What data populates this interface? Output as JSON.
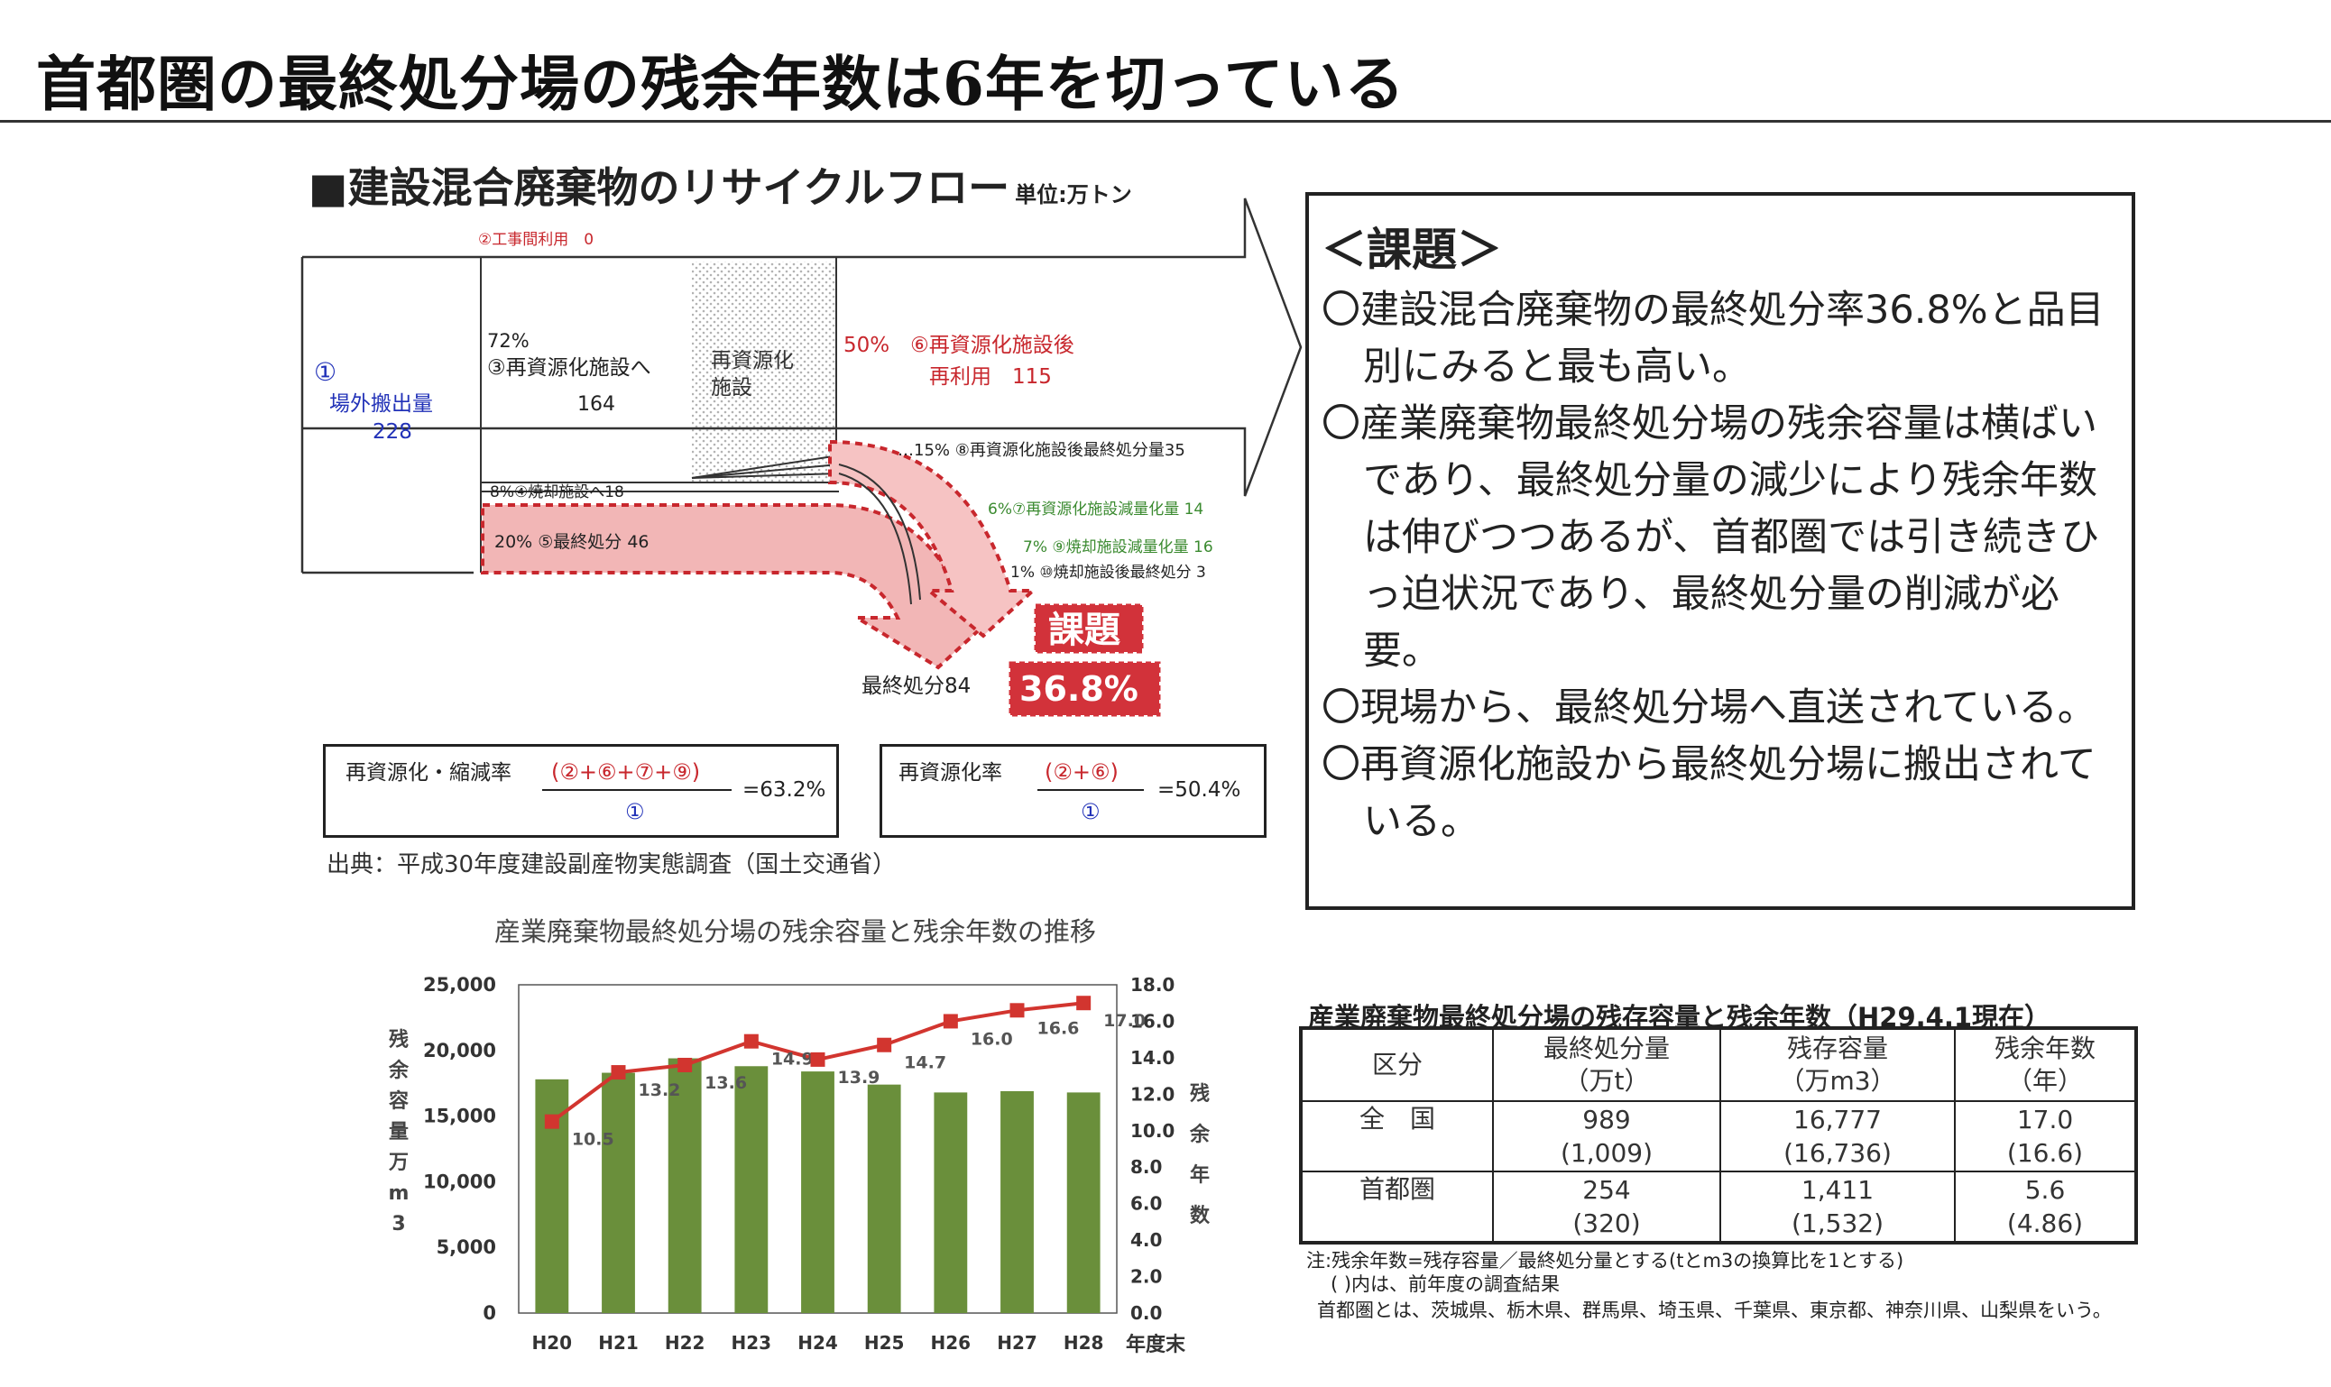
{
  "page": {
    "title": "首都圏の最終処分場の残余年数は6年を切っている"
  },
  "flow": {
    "heading": "■建設混合廃棄物のリサイクルフロー",
    "unit": "単位:万トン",
    "labels": {
      "koji": "②工事間利用　0",
      "gaibu_num": "①",
      "gaibu_1": "場外搬出量",
      "gaibu_2": "228",
      "to_fac_pct": "72%",
      "to_fac": "③再資源化施設へ",
      "to_fac_val": "164",
      "facility_1": "再資源化",
      "facility_2": "施設",
      "reuse_1": "50%　⑥再資源化施設後",
      "reuse_2": "再利用　115",
      "final_after_fac": "…15% ⑧再資源化施設後最終処分量35",
      "incin": "8%④焼却施設へ18",
      "reduction7": "6%⑦再資源化施設減量化量 14",
      "final5": "20% ⑤最終処分 46",
      "reduction9": "7% ⑨焼却施設減量化量 16",
      "final10": "1% ⑩焼却施設後最終処分 3",
      "final_total": "最終処分84",
      "kadai_stamp": "課題",
      "kadai_pct": "36.8%"
    },
    "formula1": {
      "label": "再資源化・縮減率",
      "numer": "(②+⑥+⑦+⑨)",
      "denom": "①",
      "result": "=63.2%"
    },
    "formula2": {
      "label": "再資源化率",
      "numer": "(②+⑥)",
      "denom": "①",
      "result": "=50.4%"
    },
    "source": "出典：平成30年度建設副産物実態調査（国土交通省）"
  },
  "kadai": {
    "title": "＜課題＞",
    "items": [
      "〇建設混合廃棄物の最終処分率36.8%と品目別にみると最も高い。",
      "〇産業廃棄物最終処分場の残余容量は横ばいであり、最終処分量の減少により残余年数は伸びつつあるが、首都圏では引き続きひっ迫状況であり、最終処分量の削減が必要。",
      "〇現場から、最終処分場へ直送されている。",
      "〇再資源化施設から最終処分場に搬出されている。"
    ]
  },
  "chart_data": {
    "type": "bar",
    "title": "産業廃棄物最終処分場の残余容量と残余年数の推移",
    "categories": [
      "H20",
      "H21",
      "H22",
      "H23",
      "H24",
      "H25",
      "H26",
      "H27",
      "H28"
    ],
    "series": [
      {
        "values": [
          17800,
          18300,
          19400,
          18800,
          18400,
          17400,
          16800,
          16900,
          16800
        ],
        "color": "#6a8f3b"
      },
      {
        "values": [
          10.5,
          13.2,
          13.6,
          14.9,
          13.9,
          14.7,
          16.0,
          16.6,
          17.0
        ],
        "color": "#d2352f"
      }
    ],
    "ylabel": "残余容量万m3",
    "y2label": "残余年数",
    "xlabel": "年度末",
    "ylim": [
      0,
      25000
    ],
    "y2lim": [
      0,
      18
    ],
    "yticks": [
      "0",
      "5,000",
      "10,000",
      "15,000",
      "20,000",
      "25,000"
    ],
    "y2ticks": [
      "0.0",
      "2.0",
      "4.0",
      "6.0",
      "8.0",
      "10.0",
      "12.0",
      "14.0",
      "16.0",
      "18.0"
    ],
    "data_labels": [
      "10.5",
      "13.2",
      "13.6",
      "14.9",
      "13.9",
      "14.7",
      "16.0",
      "16.6",
      "17.0"
    ]
  },
  "table": {
    "title": "産業廃棄物最終処分場の残存容量と残余年数（H29.4.1現在）",
    "headers": [
      {
        "l1": "",
        "l2": "区分"
      },
      {
        "l1": "最終処分量",
        "l2": "（万t）"
      },
      {
        "l1": "残存容量",
        "l2": "（万m3）"
      },
      {
        "l1": "残余年数",
        "l2": "（年）"
      }
    ],
    "rows": [
      {
        "name": "全　国",
        "c1a": "989",
        "c1b": "(1,009)",
        "c2a": "16,777",
        "c2b": "(16,736)",
        "c3a": "17.0",
        "c3b": "(16.6)"
      },
      {
        "name": "首都圏",
        "c1a": "254",
        "c1b": "(320)",
        "c2a": "1,411",
        "c2b": "(1,532)",
        "c3a": "5.6",
        "c3b": "(4.86)"
      }
    ],
    "notes": [
      "注:残余年数=残存容量／最終処分量とする(tとm3の換算比を1とする)",
      "( )内は、前年度の調査結果",
      "首都圏とは、茨城県、栃木県、群馬県、埼玉県、千葉県、東京都、神奈川県、山梨県をいう。"
    ]
  }
}
